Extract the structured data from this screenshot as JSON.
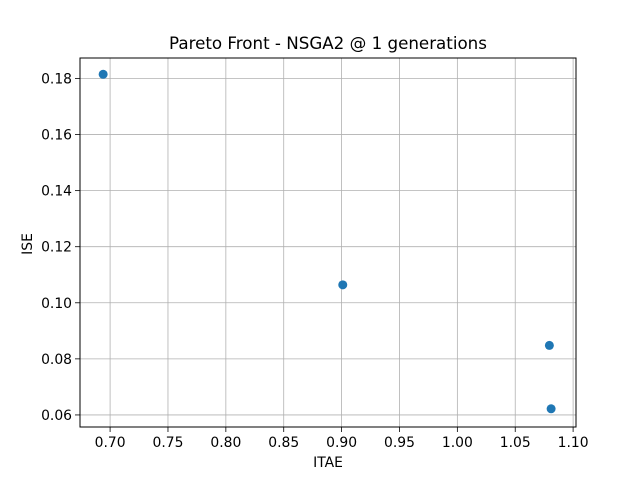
{
  "chart_data": {
    "type": "scatter",
    "title": "Pareto Front - NSGA2 @ 1 generations",
    "xlabel": "ITAE",
    "ylabel": "ISE",
    "xlim": [
      0.674,
      1.1025
    ],
    "ylim": [
      0.0557,
      0.1873
    ],
    "xticks": [
      0.7,
      0.75,
      0.8,
      0.85,
      0.9,
      0.95,
      1.0,
      1.05,
      1.1
    ],
    "xtick_labels": [
      "0.70",
      "0.75",
      "0.80",
      "0.85",
      "0.90",
      "0.95",
      "1.00",
      "1.05",
      "1.10"
    ],
    "yticks": [
      0.06,
      0.08,
      0.1,
      0.12,
      0.14,
      0.16,
      0.18
    ],
    "ytick_labels": [
      "0.06",
      "0.08",
      "0.10",
      "0.12",
      "0.14",
      "0.16",
      "0.18"
    ],
    "grid": true,
    "marker_color": "#1f77b4",
    "grid_color": "#b0b0b0",
    "points": [
      {
        "x": 0.694,
        "y": 0.1815
      },
      {
        "x": 0.901,
        "y": 0.1064
      },
      {
        "x": 1.0795,
        "y": 0.0848
      },
      {
        "x": 1.081,
        "y": 0.0622
      }
    ]
  }
}
